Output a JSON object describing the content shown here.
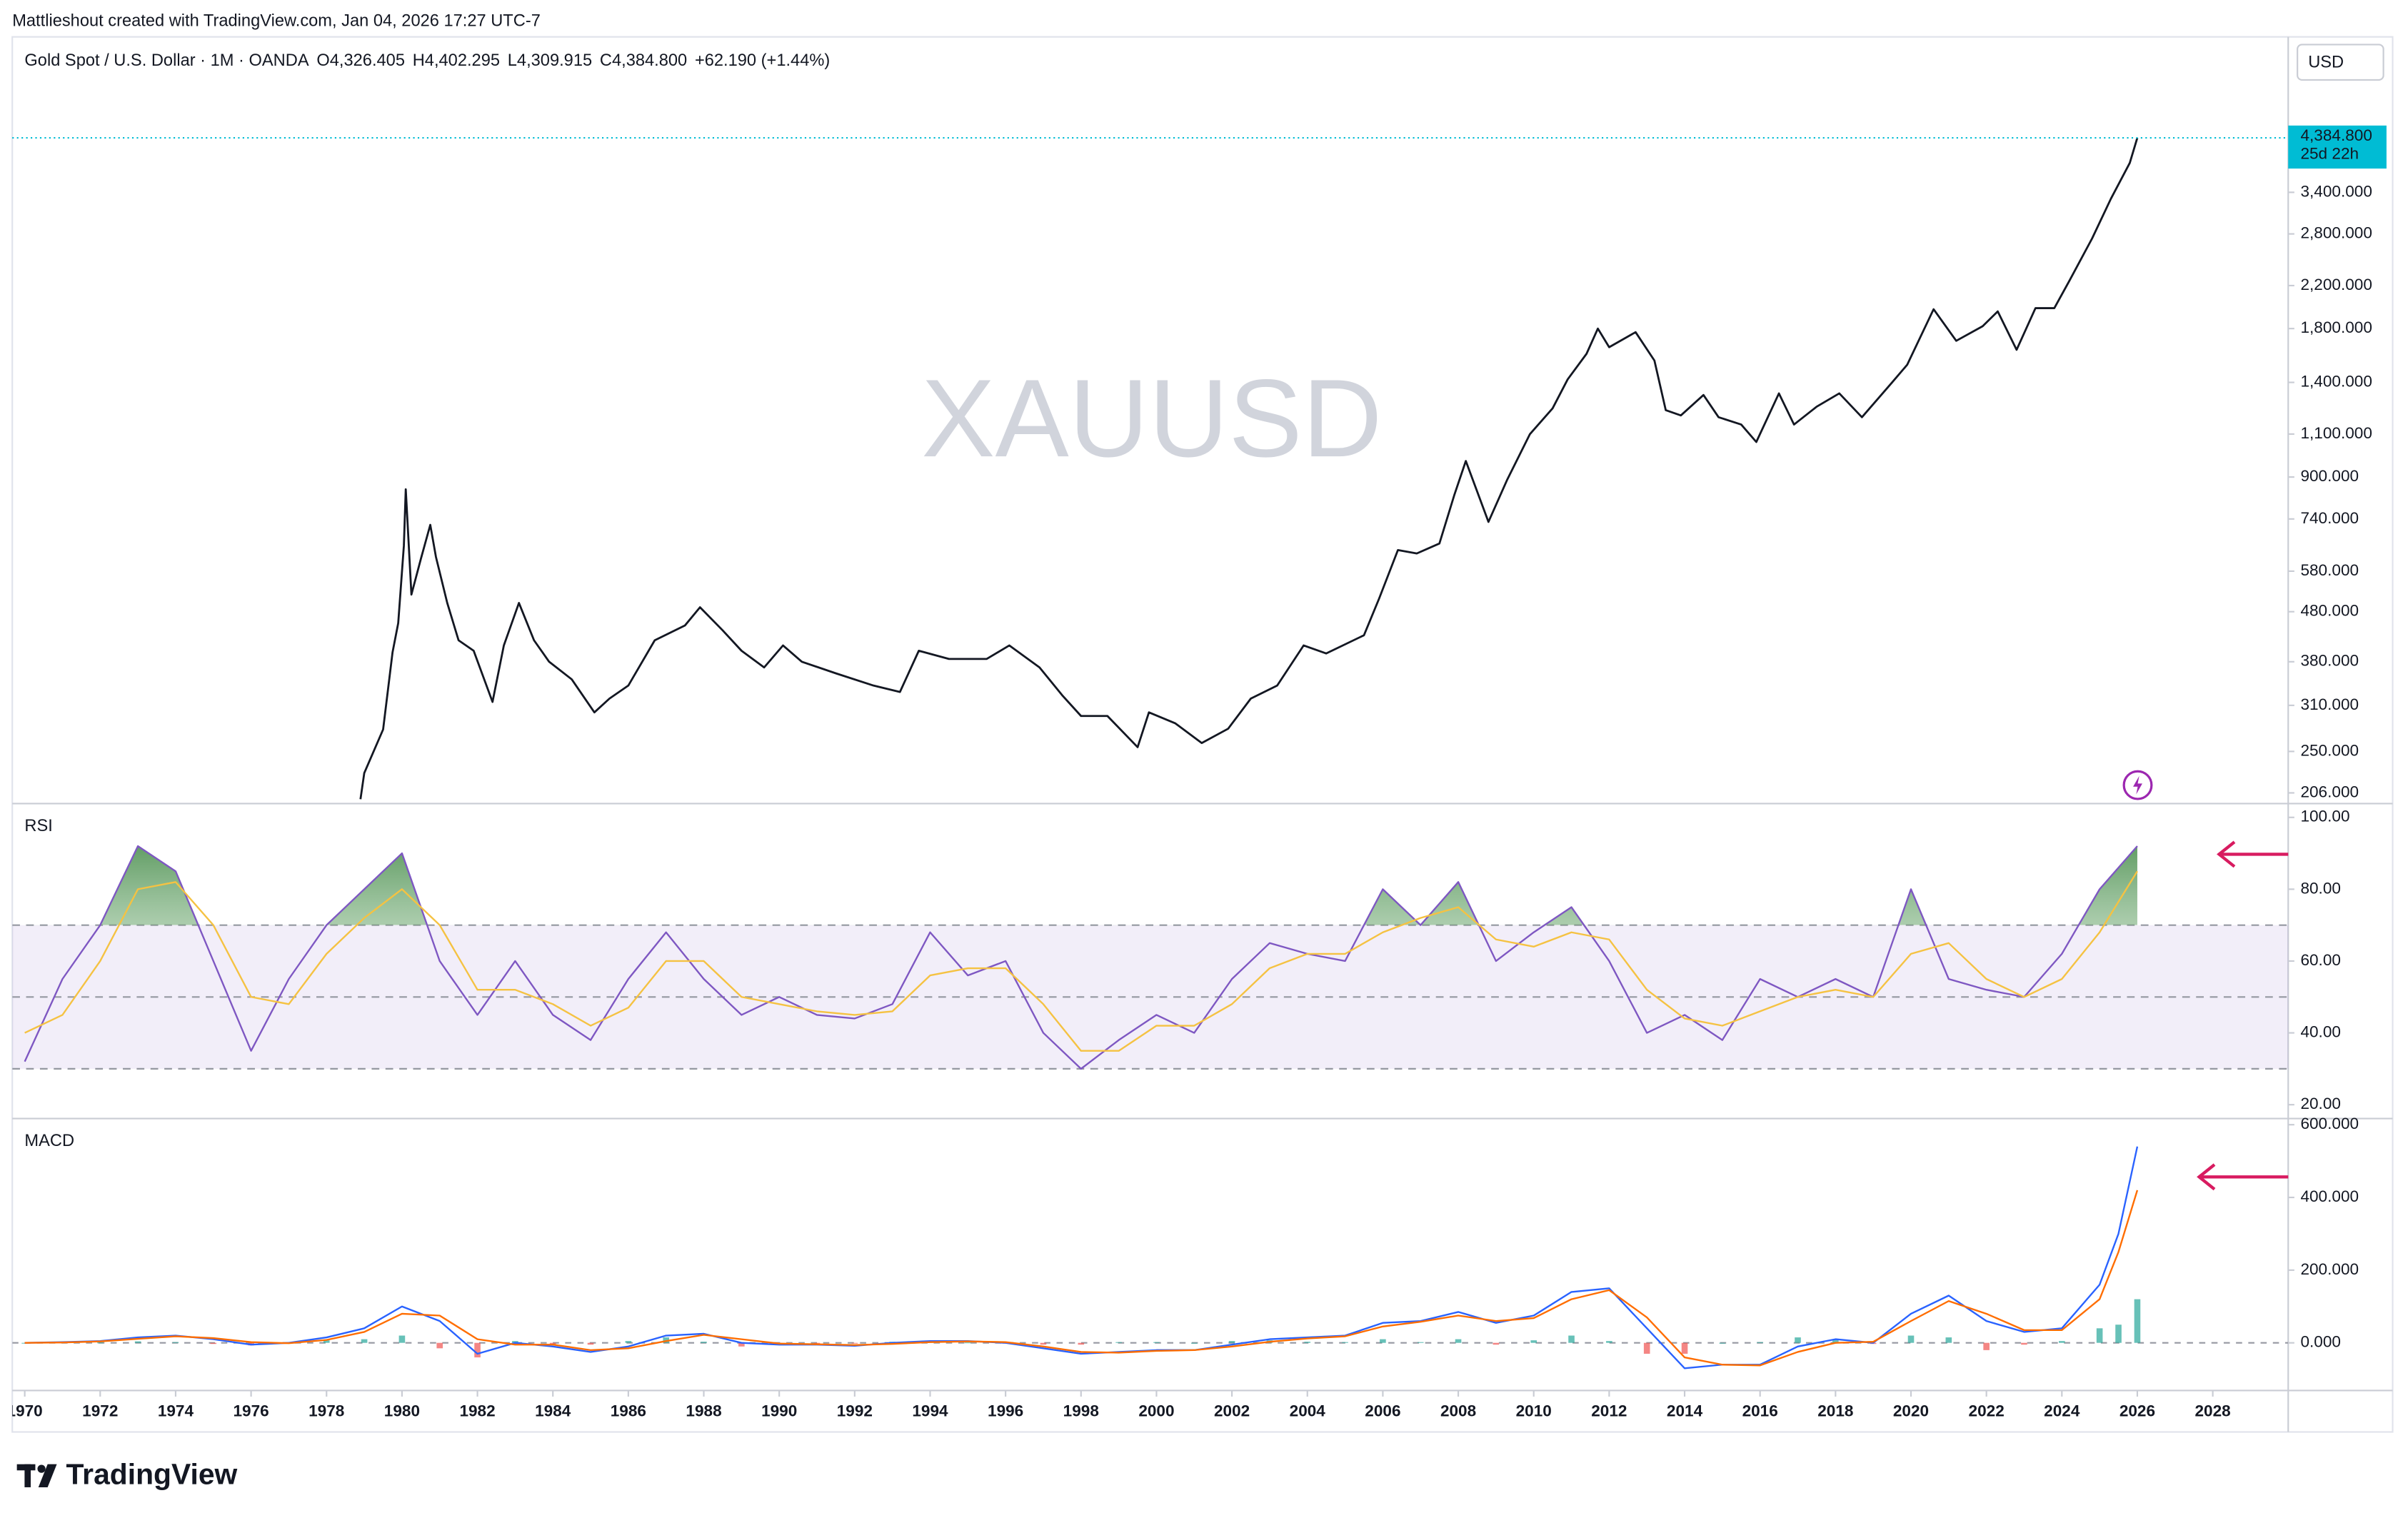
{
  "header": {
    "attribution": "Mattlieshout created with TradingView.com, Jan 04, 2026 17:27 UTC-7",
    "logo": "TradingView"
  },
  "chart_data": [
    {
      "type": "line",
      "watermark": "XAUUSD",
      "currency": "USD",
      "legend": [
        "Gold Spot / U.S. Dollar · 1M · OANDA",
        "O4,326.405",
        "H4,402.295",
        "L4,309.915",
        "C4,384.800",
        "+62.190 (+1.44%)"
      ],
      "last_price_label": "4,384.800",
      "countdown": "25d 22h",
      "color": "#131722",
      "last_price_color": "#00bcd4",
      "log_scale": true,
      "grid": false,
      "xlim": [
        1969.67,
        2030
      ],
      "ylim": [
        196,
        7025
      ],
      "yticks": [
        {
          "value": 206,
          "label": "206.000"
        },
        {
          "value": 250,
          "label": "250.000"
        },
        {
          "value": 310,
          "label": "310.000"
        },
        {
          "value": 380,
          "label": "380.000"
        },
        {
          "value": 480,
          "label": "480.000"
        },
        {
          "value": 580,
          "label": "580.000"
        },
        {
          "value": 740,
          "label": "740.000"
        },
        {
          "value": 900,
          "label": "900.000"
        },
        {
          "value": 1100,
          "label": "1,100.000"
        },
        {
          "value": 1400,
          "label": "1,400.000"
        },
        {
          "value": 1800,
          "label": "1,800.000"
        },
        {
          "value": 2200,
          "label": "2,200.000"
        },
        {
          "value": 2800,
          "label": "2,800.000"
        },
        {
          "value": 3400,
          "label": "3,400.000"
        }
      ],
      "x": [
        1978.9,
        1979.0,
        1979.5,
        1979.75,
        1979.9,
        1980.05,
        1980.1,
        1980.25,
        1980.5,
        1980.75,
        1980.9,
        1981.2,
        1981.5,
        1981.9,
        1982.4,
        1982.7,
        1983.1,
        1983.5,
        1983.9,
        1984.5,
        1985.1,
        1985.5,
        1986.0,
        1986.7,
        1987.5,
        1987.9,
        1988.5,
        1989.0,
        1989.6,
        1990.1,
        1990.6,
        1991.5,
        1992.5,
        1993.2,
        1993.7,
        1994.5,
        1995.5,
        1996.1,
        1996.9,
        1997.5,
        1998.0,
        1998.7,
        1999.5,
        1999.8,
        2000.5,
        2001.2,
        2001.9,
        2002.5,
        2003.2,
        2003.9,
        2004.5,
        2005.5,
        2005.9,
        2006.4,
        2006.9,
        2007.5,
        2007.9,
        2008.2,
        2008.8,
        2009.3,
        2009.9,
        2010.5,
        2010.9,
        2011.4,
        2011.7,
        2012.0,
        2012.7,
        2013.2,
        2013.5,
        2013.9,
        2014.5,
        2014.9,
        2015.5,
        2015.9,
        2016.5,
        2016.9,
        2017.5,
        2018.1,
        2018.7,
        2019.5,
        2019.9,
        2020.6,
        2021.2,
        2021.9,
        2022.3,
        2022.8,
        2023.3,
        2023.8,
        2024.2,
        2024.8,
        2025.3,
        2025.8,
        2026.0
      ],
      "values": [
        200,
        226,
        277,
        397,
        455,
        653,
        850,
        520,
        614,
        720,
        620,
        500,
        420,
        400,
        315,
        410,
        500,
        420,
        380,
        350,
        300,
        320,
        340,
        420,
        450,
        490,
        440,
        400,
        370,
        410,
        380,
        360,
        340,
        330,
        400,
        385,
        385,
        410,
        370,
        325,
        295,
        295,
        255,
        300,
        285,
        260,
        278,
        320,
        340,
        410,
        395,
        430,
        510,
        640,
        630,
        660,
        830,
        970,
        730,
        890,
        1100,
        1240,
        1420,
        1600,
        1800,
        1650,
        1770,
        1550,
        1230,
        1200,
        1320,
        1190,
        1150,
        1060,
        1330,
        1150,
        1250,
        1330,
        1190,
        1400,
        1520,
        1970,
        1700,
        1820,
        1950,
        1630,
        1980,
        1980,
        2250,
        2740,
        3300,
        3900,
        4384.8
      ]
    },
    {
      "type": "line",
      "title": "RSI",
      "xlim": [
        1969.67,
        2030
      ],
      "ylim": [
        16.15,
        103.85
      ],
      "yticks": [
        {
          "value": 20,
          "label": "20.00"
        },
        {
          "value": 40,
          "label": "40.00"
        },
        {
          "value": 60,
          "label": "60.00"
        },
        {
          "value": 80,
          "label": "80.00"
        },
        {
          "value": 100,
          "label": "100.00"
        }
      ],
      "levels": [
        70,
        50,
        30
      ],
      "band_color": "#7e57c2",
      "overbought_color": "#4caf50",
      "x": [
        1970,
        1971,
        1972,
        1973,
        1974,
        1975,
        1976,
        1977,
        1978,
        1979,
        1980,
        1981,
        1982,
        1983,
        1984,
        1985,
        1986,
        1987,
        1988,
        1989,
        1990,
        1991,
        1992,
        1993,
        1994,
        1995,
        1996,
        1997,
        1998,
        1999,
        2000,
        2001,
        2002,
        2003,
        2004,
        2005,
        2006,
        2007,
        2008,
        2009,
        2010,
        2011,
        2012,
        2013,
        2014,
        2015,
        2016,
        2017,
        2018,
        2019,
        2020,
        2021,
        2022,
        2023,
        2024,
        2025,
        2026
      ],
      "series": [
        {
          "color": "#7e57c2",
          "values": [
            32,
            55,
            70,
            92,
            85,
            60,
            35,
            55,
            70,
            80,
            90,
            60,
            45,
            60,
            45,
            38,
            55,
            68,
            55,
            45,
            50,
            45,
            44,
            48,
            68,
            56,
            60,
            40,
            30,
            38,
            45,
            40,
            55,
            65,
            62,
            60,
            80,
            70,
            82,
            60,
            68,
            75,
            60,
            40,
            45,
            38,
            55,
            50,
            55,
            50,
            80,
            55,
            52,
            50,
            62,
            80,
            92
          ]
        },
        {
          "color": "#f5c242",
          "values": [
            40,
            45,
            60,
            80,
            82,
            70,
            50,
            48,
            62,
            72,
            80,
            70,
            52,
            52,
            48,
            42,
            47,
            60,
            60,
            50,
            48,
            46,
            45,
            46,
            56,
            58,
            58,
            48,
            35,
            35,
            42,
            42,
            48,
            58,
            62,
            62,
            68,
            72,
            75,
            66,
            64,
            68,
            66,
            52,
            44,
            42,
            46,
            50,
            52,
            50,
            62,
            65,
            55,
            50,
            55,
            68,
            85
          ]
        }
      ]
    },
    {
      "type": "line",
      "title": "MACD",
      "xlim": [
        1969.67,
        2030
      ],
      "ylim": [
        -131,
        617
      ],
      "yticks": [
        {
          "value": 0,
          "label": "0.000"
        },
        {
          "value": 200,
          "label": "200.000"
        },
        {
          "value": 400,
          "label": "400.000"
        },
        {
          "value": 600,
          "label": "600.000"
        }
      ],
      "xticks": [
        1970,
        1972,
        1974,
        1976,
        1978,
        1980,
        1982,
        1984,
        1986,
        1988,
        1990,
        1992,
        1994,
        1996,
        1998,
        2000,
        2002,
        2004,
        2006,
        2008,
        2010,
        2012,
        2014,
        2016,
        2018,
        2020,
        2022,
        2024,
        2026,
        2028
      ],
      "zero_line": true,
      "x": [
        1970,
        1971,
        1972,
        1973,
        1974,
        1975,
        1976,
        1977,
        1978,
        1979,
        1980,
        1981,
        1982,
        1983,
        1984,
        1985,
        1986,
        1987,
        1988,
        1989,
        1990,
        1991,
        1992,
        1993,
        1994,
        1995,
        1996,
        1997,
        1998,
        1999,
        2000,
        2001,
        2002,
        2003,
        2004,
        2005,
        2006,
        2007,
        2008,
        2009,
        2010,
        2011,
        2012,
        2013,
        2014,
        2015,
        2016,
        2017,
        2018,
        2019,
        2020,
        2021,
        2022,
        2023,
        2024,
        2025,
        2025.5,
        2026
      ],
      "series": [
        {
          "color": "#2962ff",
          "values": [
            0,
            2,
            5,
            15,
            20,
            10,
            -5,
            0,
            15,
            40,
            100,
            60,
            -30,
            0,
            -10,
            -25,
            -10,
            20,
            25,
            0,
            -5,
            -5,
            -8,
            0,
            5,
            5,
            0,
            -15,
            -30,
            -25,
            -20,
            -20,
            -5,
            10,
            15,
            20,
            55,
            60,
            85,
            55,
            75,
            140,
            150,
            40,
            -70,
            -60,
            -60,
            -10,
            10,
            0,
            80,
            130,
            60,
            30,
            40,
            160,
            300,
            540
          ]
        },
        {
          "color": "#ff6d00",
          "values": [
            0,
            1,
            4,
            11,
            18,
            13,
            2,
            -1,
            8,
            30,
            80,
            75,
            10,
            -5,
            -5,
            -20,
            -15,
            5,
            22,
            10,
            -2,
            -4,
            -6,
            -3,
            2,
            4,
            2,
            -10,
            -25,
            -27,
            -22,
            -20,
            -10,
            3,
            12,
            18,
            45,
            58,
            75,
            60,
            68,
            120,
            145,
            70,
            -40,
            -60,
            -62,
            -25,
            0,
            3,
            60,
            115,
            80,
            35,
            35,
            120,
            250,
            420
          ]
        }
      ],
      "histogram": {
        "color": "#26a69a",
        "negative_color": "#ef5350",
        "values": [
          0,
          1,
          1,
          4,
          2,
          -3,
          -7,
          1,
          7,
          10,
          20,
          -15,
          -40,
          5,
          -5,
          -5,
          5,
          15,
          3,
          -10,
          -3,
          -1,
          -2,
          3,
          3,
          1,
          -2,
          -5,
          -5,
          2,
          2,
          0,
          5,
          7,
          3,
          2,
          10,
          2,
          10,
          -5,
          7,
          20,
          5,
          -30,
          -30,
          0,
          2,
          15,
          10,
          -3,
          20,
          15,
          -20,
          -5,
          5,
          40,
          50,
          120
        ]
      }
    }
  ]
}
